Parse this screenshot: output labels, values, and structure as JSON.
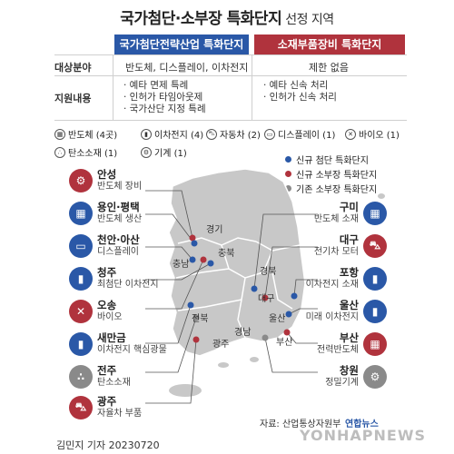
{
  "title": {
    "main": "국가첨단·소부장 특화단지",
    "sub": "선정 지역"
  },
  "table": {
    "col1_header": "국가첨단전략산업 특화단지",
    "col2_header": "소재부품장비 특화단지",
    "row1_label": "대상분야",
    "row1_col1": "반도체, 디스플레이, 이차전지",
    "row1_col2": "제한 없음",
    "row2_label": "지원내용",
    "row2_col1": [
      "· 예타 면제 특례",
      "· 인허가 타임아웃제",
      "· 국가산단 지정 특례"
    ],
    "row2_col2": [
      "· 예타 신속 처리",
      "· 인허가 신속 처리"
    ]
  },
  "categories": [
    {
      "label": "반도체 (4곳)",
      "icon": "chip-icon"
    },
    {
      "label": "이차전지 (4)",
      "icon": "battery-icon"
    },
    {
      "label": "자동차 (2)",
      "icon": "car-icon"
    },
    {
      "label": "디스플레이 (1)",
      "icon": "monitor-icon"
    },
    {
      "label": "바이오 (1)",
      "icon": "dna-icon"
    },
    {
      "label": "탄소소재 (1)",
      "icon": "carbon-icon"
    },
    {
      "label": "기계 (1)",
      "icon": "gear-icon"
    }
  ],
  "legend": [
    {
      "label": "신규 첨단 특화단지",
      "color": "#2a58a7"
    },
    {
      "label": "신규 소부장 특화단지",
      "color": "#b0333d"
    },
    {
      "label": "기존 소부장 특화단지",
      "color": "#8a8a8a"
    }
  ],
  "sites_left": [
    {
      "name": "안성",
      "desc": "반도체 장비",
      "color": "red",
      "icon": "⚙"
    },
    {
      "name": "용인·평택",
      "desc": "반도체 생산",
      "color": "blue",
      "icon": "▦"
    },
    {
      "name": "천안·아산",
      "desc": "디스플레이",
      "color": "blue",
      "icon": "▭"
    },
    {
      "name": "청주",
      "desc": "최첨단 이차전지",
      "color": "blue",
      "icon": "▮"
    },
    {
      "name": "오송",
      "desc": "바이오",
      "color": "red",
      "icon": "✕"
    },
    {
      "name": "새만금",
      "desc": "이차전지 핵심광물",
      "color": "blue",
      "icon": "▮"
    },
    {
      "name": "전주",
      "desc": "탄소소재",
      "color": "gray",
      "icon": "∴"
    },
    {
      "name": "광주",
      "desc": "자율차 부품",
      "color": "red",
      "icon": "⛍"
    }
  ],
  "sites_right": [
    {
      "name": "구미",
      "desc": "반도체 소재",
      "color": "blue",
      "icon": "▦"
    },
    {
      "name": "대구",
      "desc": "전기차 모터",
      "color": "red",
      "icon": "⛍"
    },
    {
      "name": "포항",
      "desc": "이차전지 소재",
      "color": "blue",
      "icon": "▮"
    },
    {
      "name": "울산",
      "desc": "미래 이차전지",
      "color": "blue",
      "icon": "▮"
    },
    {
      "name": "부산",
      "desc": "전력반도체",
      "color": "red",
      "icon": "▦"
    },
    {
      "name": "창원",
      "desc": "정밀기계",
      "color": "gray",
      "icon": "⚙"
    }
  ],
  "regions": [
    "경기",
    "충북",
    "충남",
    "경북",
    "대구",
    "전북",
    "울산",
    "광주",
    "경남",
    "부산"
  ],
  "source": "자료: 산업통상자원부",
  "logo": "연합뉴스",
  "watermark": "YONHAPNEWS",
  "byline": "김민지 기자",
  "date": "20230720"
}
